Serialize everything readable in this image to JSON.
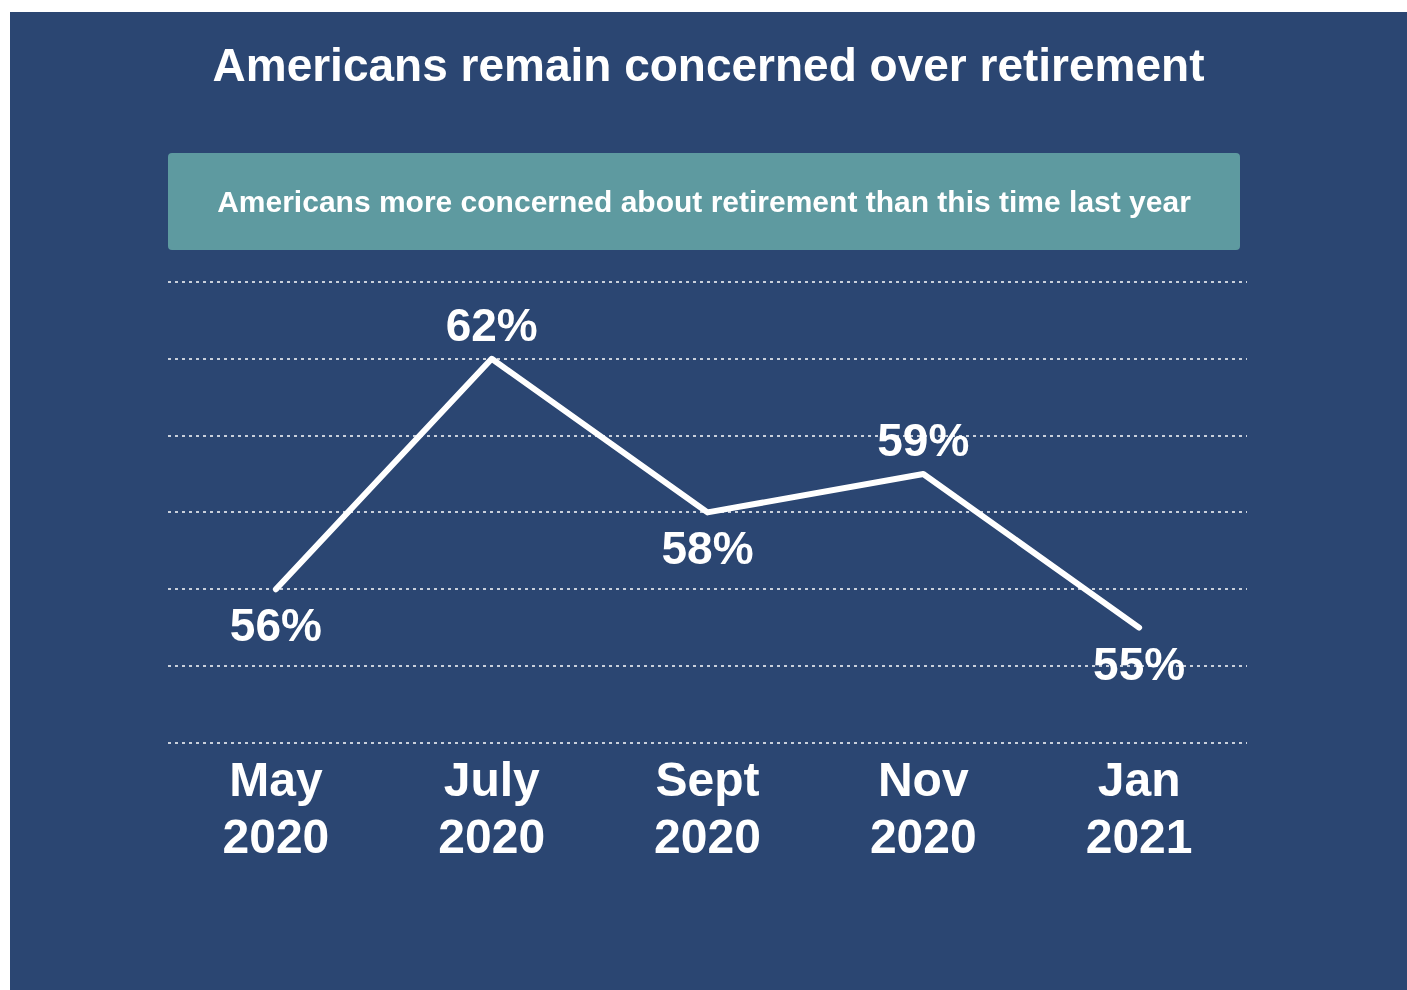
{
  "chart_data": {
    "type": "line",
    "title": "Americans remain concerned over retirement",
    "subtitle": "Americans more concerned about retirement than this time last year",
    "categories": [
      "May 2020",
      "July 2020",
      "Sept 2020",
      "Nov 2020",
      "Jan 2021"
    ],
    "series": [
      {
        "color": "#ffffff",
        "values": [
          56,
          62,
          58,
          59,
          55
        ],
        "value_labels": [
          "56%",
          "62%",
          "58%",
          "59%",
          "55%"
        ]
      }
    ],
    "grid": "y",
    "marker": "none",
    "line_style": "solid",
    "tick_labels": "x"
  }
}
